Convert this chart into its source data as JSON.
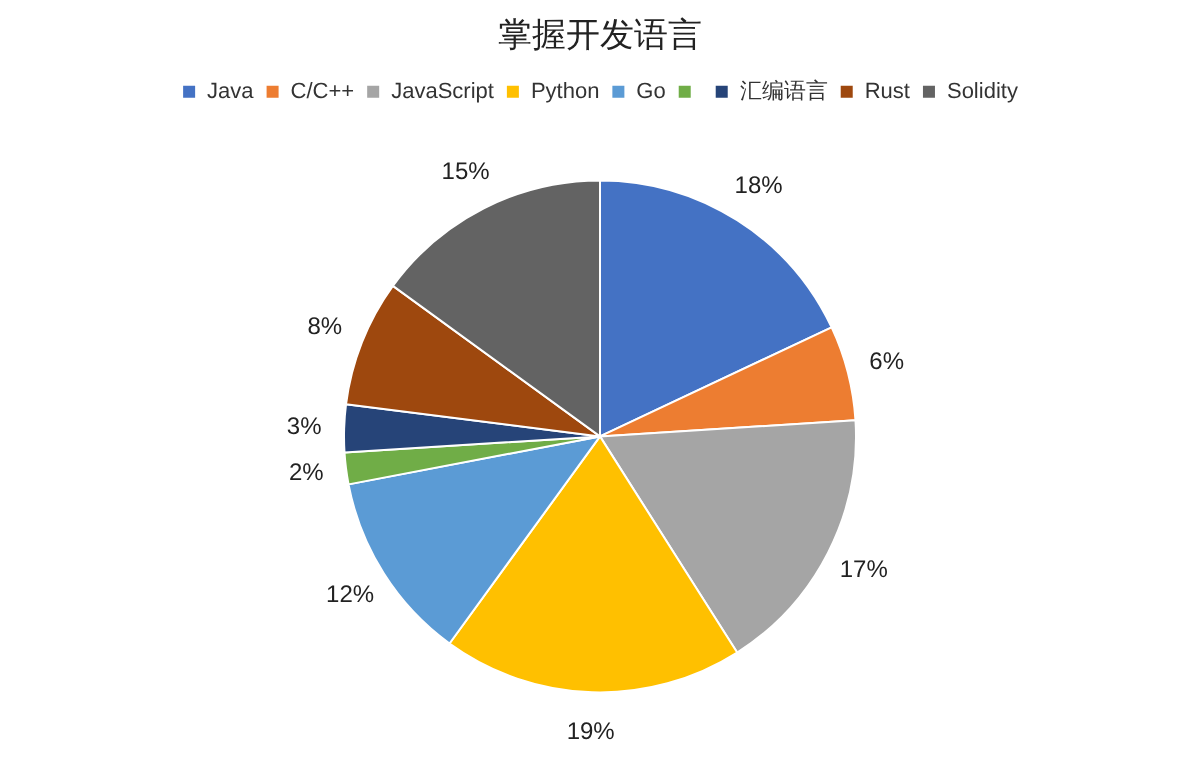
{
  "chart_data": {
    "type": "pie",
    "title": "掌握开发语言",
    "categories": [
      "Java",
      "C/C++",
      "JavaScript",
      "Python",
      "Go",
      null,
      "汇编语言",
      "Rust",
      "Solidity"
    ],
    "values": [
      18,
      6,
      17,
      19,
      12,
      2,
      3,
      8,
      15
    ],
    "value_labels": [
      "18%",
      "6%",
      "17%",
      "19%",
      "12%",
      "2%",
      "3%",
      "8%",
      "15%"
    ],
    "colors": [
      "#4472c4",
      "#ed7d31",
      "#a5a5a5",
      "#ffc000",
      "#5b9bd5",
      "#70ad47",
      "#264478",
      "#9e480e",
      "#636363"
    ],
    "legend": "top"
  }
}
